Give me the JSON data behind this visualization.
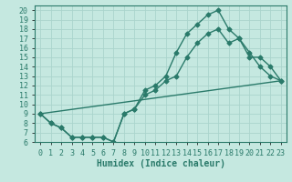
{
  "xlabel": "Humidex (Indice chaleur)",
  "xlim": [
    -0.5,
    23.5
  ],
  "ylim": [
    6,
    20.5
  ],
  "xticks": [
    0,
    1,
    2,
    3,
    4,
    5,
    6,
    7,
    8,
    9,
    10,
    11,
    12,
    13,
    14,
    15,
    16,
    17,
    18,
    19,
    20,
    21,
    22,
    23
  ],
  "yticks": [
    6,
    7,
    8,
    9,
    10,
    11,
    12,
    13,
    14,
    15,
    16,
    17,
    18,
    19,
    20
  ],
  "bg_color": "#c5e8e0",
  "grid_color": "#aad4cc",
  "line_color": "#2a7a6a",
  "line1_x": [
    0,
    1,
    2,
    3,
    4,
    5,
    6,
    7,
    8,
    9,
    10,
    11,
    12,
    13,
    14,
    15,
    16,
    17,
    18,
    19,
    20,
    21,
    22,
    23
  ],
  "line1_y": [
    9.0,
    8.0,
    7.5,
    6.5,
    6.5,
    6.5,
    6.5,
    6.0,
    9.0,
    9.5,
    11.5,
    12.0,
    13.0,
    15.5,
    17.5,
    18.5,
    19.5,
    20.0,
    18.0,
    17.0,
    15.5,
    14.0,
    13.0,
    12.5
  ],
  "line2_x": [
    0,
    1,
    2,
    3,
    4,
    5,
    6,
    7,
    8,
    9,
    10,
    11,
    12,
    13,
    14,
    15,
    16,
    17,
    18,
    19,
    20,
    21,
    22,
    23
  ],
  "line2_y": [
    9.0,
    8.0,
    7.5,
    6.5,
    6.5,
    6.5,
    6.5,
    6.0,
    9.0,
    9.5,
    11.0,
    11.5,
    12.5,
    13.0,
    15.0,
    16.5,
    17.5,
    18.0,
    16.5,
    17.0,
    15.0,
    15.0,
    14.0,
    12.5
  ],
  "line3_x": [
    0,
    23
  ],
  "line3_y": [
    9.0,
    12.5
  ],
  "markersize": 2.5,
  "linewidth": 1.0,
  "xlabel_fontsize": 7,
  "tick_fontsize": 6
}
